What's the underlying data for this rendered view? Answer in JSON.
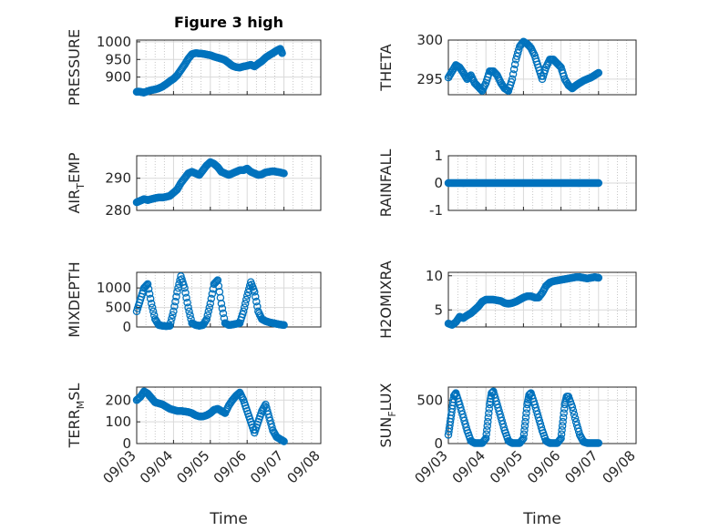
{
  "figure": {
    "title": "Figure 3 high",
    "xlabel": "Time",
    "x_ticks": [
      "09/03",
      "09/04",
      "09/05",
      "09/06",
      "09/07",
      "09/08"
    ],
    "marker_color": "#0072BD"
  },
  "chart_data": [
    {
      "type": "scatter",
      "title": "Figure 3 high",
      "ylabel": "PRESSURE",
      "xlabel": "",
      "xlim": [
        0,
        5
      ],
      "ylim": [
        850,
        1005
      ],
      "yticks": [
        900,
        950,
        1000
      ],
      "grid": true,
      "x": [
        0.0,
        0.05,
        0.1,
        0.15,
        0.2,
        0.3,
        0.4,
        0.5,
        0.6,
        0.7,
        0.8,
        0.9,
        1.0,
        1.1,
        1.2,
        1.3,
        1.4,
        1.5,
        1.6,
        1.7,
        1.8,
        1.9,
        2.0,
        2.1,
        2.2,
        2.3,
        2.4,
        2.5,
        2.6,
        2.7,
        2.8,
        2.9,
        3.0,
        3.1,
        3.2,
        3.3,
        3.4,
        3.5,
        3.6,
        3.7,
        3.8,
        3.9,
        3.95
      ],
      "y": [
        858,
        859,
        858,
        857,
        856,
        860,
        863,
        865,
        868,
        873,
        880,
        888,
        895,
        905,
        920,
        935,
        952,
        965,
        968,
        967,
        966,
        964,
        962,
        958,
        955,
        952,
        948,
        940,
        932,
        928,
        927,
        930,
        932,
        935,
        930,
        938,
        945,
        955,
        962,
        968,
        975,
        980,
        968
      ]
    },
    {
      "type": "scatter",
      "title": "",
      "ylabel": "THETA",
      "xlabel": "",
      "xlim": [
        0,
        5
      ],
      "ylim": [
        293,
        300
      ],
      "yticks": [
        295,
        300
      ],
      "grid": true,
      "x": [
        0.0,
        0.1,
        0.2,
        0.3,
        0.4,
        0.5,
        0.6,
        0.7,
        0.8,
        0.9,
        1.0,
        1.1,
        1.2,
        1.3,
        1.4,
        1.5,
        1.6,
        1.7,
        1.8,
        1.9,
        2.0,
        2.1,
        2.2,
        2.3,
        2.4,
        2.5,
        2.6,
        2.7,
        2.8,
        2.9,
        3.0,
        3.1,
        3.2,
        3.3,
        3.4,
        3.5,
        3.6,
        3.7,
        3.8,
        3.9,
        4.0
      ],
      "y": [
        295.2,
        296.0,
        296.8,
        296.5,
        295.8,
        295.0,
        295.5,
        294.5,
        294.0,
        293.5,
        294.5,
        296.0,
        296.0,
        295.5,
        294.5,
        293.8,
        293.5,
        295.0,
        297.5,
        299.2,
        299.8,
        299.5,
        299.0,
        298.0,
        296.5,
        295.0,
        296.5,
        297.5,
        297.5,
        297.0,
        296.5,
        295.0,
        294.2,
        293.8,
        294.2,
        294.5,
        294.8,
        295.0,
        295.2,
        295.5,
        295.8
      ]
    },
    {
      "type": "scatter",
      "title": "",
      "ylabel": "AIR_TEMP",
      "xlabel": "",
      "xlim": [
        0,
        5
      ],
      "ylim": [
        280,
        297
      ],
      "yticks": [
        280,
        290
      ],
      "grid": true,
      "x": [
        0.0,
        0.1,
        0.2,
        0.3,
        0.4,
        0.5,
        0.6,
        0.7,
        0.8,
        0.9,
        1.0,
        1.1,
        1.2,
        1.3,
        1.4,
        1.5,
        1.6,
        1.7,
        1.8,
        1.9,
        2.0,
        2.1,
        2.2,
        2.3,
        2.4,
        2.5,
        2.6,
        2.7,
        2.8,
        2.9,
        3.0,
        3.1,
        3.2,
        3.3,
        3.4,
        3.5,
        3.6,
        3.7,
        3.8,
        3.9,
        4.0
      ],
      "y": [
        282.5,
        283.0,
        283.5,
        283.2,
        283.5,
        283.8,
        284.0,
        284.0,
        284.2,
        284.5,
        285.5,
        286.5,
        288.5,
        290.0,
        291.5,
        292.0,
        291.5,
        291.0,
        292.5,
        294.0,
        295.0,
        294.5,
        293.5,
        292.0,
        291.5,
        291.0,
        291.5,
        292.0,
        292.5,
        292.5,
        293.0,
        292.0,
        291.5,
        291.0,
        291.2,
        291.8,
        292.0,
        292.2,
        292.0,
        291.8,
        291.5
      ]
    },
    {
      "type": "scatter",
      "title": "",
      "ylabel": "RAINFALL",
      "xlabel": "",
      "xlim": [
        0,
        5
      ],
      "ylim": [
        -1,
        1
      ],
      "yticks": [
        -1,
        0,
        1
      ],
      "grid": true,
      "x": [
        0.0,
        0.1,
        0.2,
        0.3,
        0.4,
        0.5,
        0.6,
        0.7,
        0.8,
        0.9,
        1.0,
        1.1,
        1.2,
        1.3,
        1.4,
        1.5,
        1.6,
        1.7,
        1.8,
        1.9,
        2.0,
        2.1,
        2.2,
        2.3,
        2.4,
        2.5,
        2.6,
        2.7,
        2.8,
        2.9,
        3.0,
        3.1,
        3.2,
        3.3,
        3.4,
        3.5,
        3.6,
        3.7,
        3.8,
        3.9,
        4.0
      ],
      "y": [
        0,
        0,
        0,
        0,
        0,
        0,
        0,
        0,
        0,
        0,
        0,
        0,
        0,
        0,
        0,
        0,
        0,
        0,
        0,
        0,
        0,
        0,
        0,
        0,
        0,
        0,
        0,
        0,
        0,
        0,
        0,
        0,
        0,
        0,
        0,
        0,
        0,
        0,
        0,
        0,
        0
      ]
    },
    {
      "type": "scatter",
      "title": "",
      "ylabel": "MIXDEPTH",
      "xlabel": "",
      "xlim": [
        0,
        5
      ],
      "ylim": [
        0,
        1400
      ],
      "yticks": [
        0,
        500,
        1000
      ],
      "grid": true,
      "x": [
        0.0,
        0.1,
        0.2,
        0.3,
        0.4,
        0.5,
        0.6,
        0.7,
        0.8,
        0.9,
        1.0,
        1.1,
        1.2,
        1.3,
        1.4,
        1.5,
        1.6,
        1.7,
        1.8,
        1.9,
        2.0,
        2.1,
        2.2,
        2.3,
        2.4,
        2.5,
        2.6,
        2.7,
        2.8,
        2.9,
        3.0,
        3.1,
        3.2,
        3.3,
        3.4,
        3.5,
        3.6,
        3.7,
        3.8,
        3.9,
        4.0
      ],
      "y": [
        400,
        700,
        1000,
        1100,
        600,
        200,
        50,
        30,
        20,
        30,
        400,
        900,
        1300,
        1000,
        500,
        100,
        50,
        30,
        50,
        200,
        600,
        1100,
        1200,
        600,
        100,
        50,
        60,
        80,
        100,
        400,
        800,
        1150,
        900,
        400,
        200,
        150,
        120,
        100,
        80,
        60,
        50
      ]
    },
    {
      "type": "scatter",
      "title": "",
      "ylabel": "H2OMIXRA",
      "xlabel": "",
      "xlim": [
        0,
        5
      ],
      "ylim": [
        2.5,
        10.5
      ],
      "yticks": [
        5,
        10
      ],
      "grid": true,
      "x": [
        0.0,
        0.1,
        0.2,
        0.3,
        0.4,
        0.5,
        0.6,
        0.7,
        0.8,
        0.9,
        1.0,
        1.1,
        1.2,
        1.3,
        1.4,
        1.5,
        1.6,
        1.7,
        1.8,
        1.9,
        2.0,
        2.1,
        2.2,
        2.3,
        2.4,
        2.5,
        2.6,
        2.7,
        2.8,
        2.9,
        3.0,
        3.1,
        3.2,
        3.3,
        3.4,
        3.5,
        3.6,
        3.7,
        3.8,
        3.9,
        4.0
      ],
      "y": [
        3.0,
        2.8,
        3.2,
        4.0,
        3.8,
        4.2,
        4.5,
        5.0,
        5.5,
        6.2,
        6.5,
        6.5,
        6.5,
        6.4,
        6.3,
        6.0,
        5.9,
        6.0,
        6.2,
        6.5,
        6.8,
        7.0,
        7.0,
        6.8,
        6.8,
        7.5,
        8.5,
        9.0,
        9.2,
        9.3,
        9.4,
        9.5,
        9.6,
        9.7,
        9.8,
        9.8,
        9.7,
        9.6,
        9.7,
        9.8,
        9.7
      ]
    },
    {
      "type": "scatter",
      "title": "",
      "ylabel": "TERR_MSL",
      "xlabel": "",
      "xlim": [
        0,
        5
      ],
      "ylim": [
        0,
        260
      ],
      "yticks": [
        0,
        100,
        200
      ],
      "grid": true,
      "x": [
        0.0,
        0.1,
        0.2,
        0.3,
        0.4,
        0.5,
        0.6,
        0.7,
        0.8,
        0.9,
        1.0,
        1.1,
        1.2,
        1.3,
        1.4,
        1.5,
        1.6,
        1.7,
        1.8,
        1.9,
        2.0,
        2.1,
        2.2,
        2.3,
        2.4,
        2.5,
        2.6,
        2.7,
        2.8,
        2.9,
        3.0,
        3.1,
        3.2,
        3.3,
        3.4,
        3.5,
        3.6,
        3.7,
        3.8,
        3.9,
        4.0
      ],
      "y": [
        200,
        215,
        240,
        230,
        210,
        190,
        185,
        180,
        170,
        160,
        155,
        150,
        150,
        148,
        145,
        140,
        130,
        125,
        125,
        130,
        140,
        155,
        160,
        150,
        140,
        175,
        200,
        220,
        235,
        200,
        150,
        100,
        50,
        100,
        150,
        180,
        120,
        60,
        30,
        20,
        10
      ]
    },
    {
      "type": "scatter",
      "title": "",
      "ylabel": "SUN_FLUX",
      "xlabel": "",
      "xlim": [
        0,
        5
      ],
      "ylim": [
        0,
        650
      ],
      "yticks": [
        0,
        500
      ],
      "grid": true,
      "x": [
        0.0,
        0.05,
        0.1,
        0.15,
        0.2,
        0.3,
        0.4,
        0.5,
        0.6,
        0.7,
        0.8,
        0.9,
        1.0,
        1.05,
        1.1,
        1.15,
        1.2,
        1.3,
        1.4,
        1.5,
        1.6,
        1.7,
        1.8,
        1.9,
        2.0,
        2.05,
        2.1,
        2.15,
        2.2,
        2.3,
        2.4,
        2.5,
        2.6,
        2.7,
        2.8,
        2.9,
        3.0,
        3.05,
        3.1,
        3.15,
        3.2,
        3.3,
        3.4,
        3.5,
        3.6,
        3.7,
        3.8,
        3.9,
        4.0
      ],
      "y": [
        100,
        250,
        400,
        550,
        580,
        450,
        300,
        150,
        30,
        5,
        5,
        5,
        60,
        250,
        450,
        580,
        600,
        450,
        300,
        150,
        30,
        5,
        5,
        5,
        60,
        250,
        450,
        560,
        580,
        450,
        300,
        150,
        30,
        5,
        5,
        5,
        60,
        250,
        450,
        540,
        540,
        420,
        250,
        100,
        20,
        5,
        5,
        5,
        5
      ]
    }
  ]
}
